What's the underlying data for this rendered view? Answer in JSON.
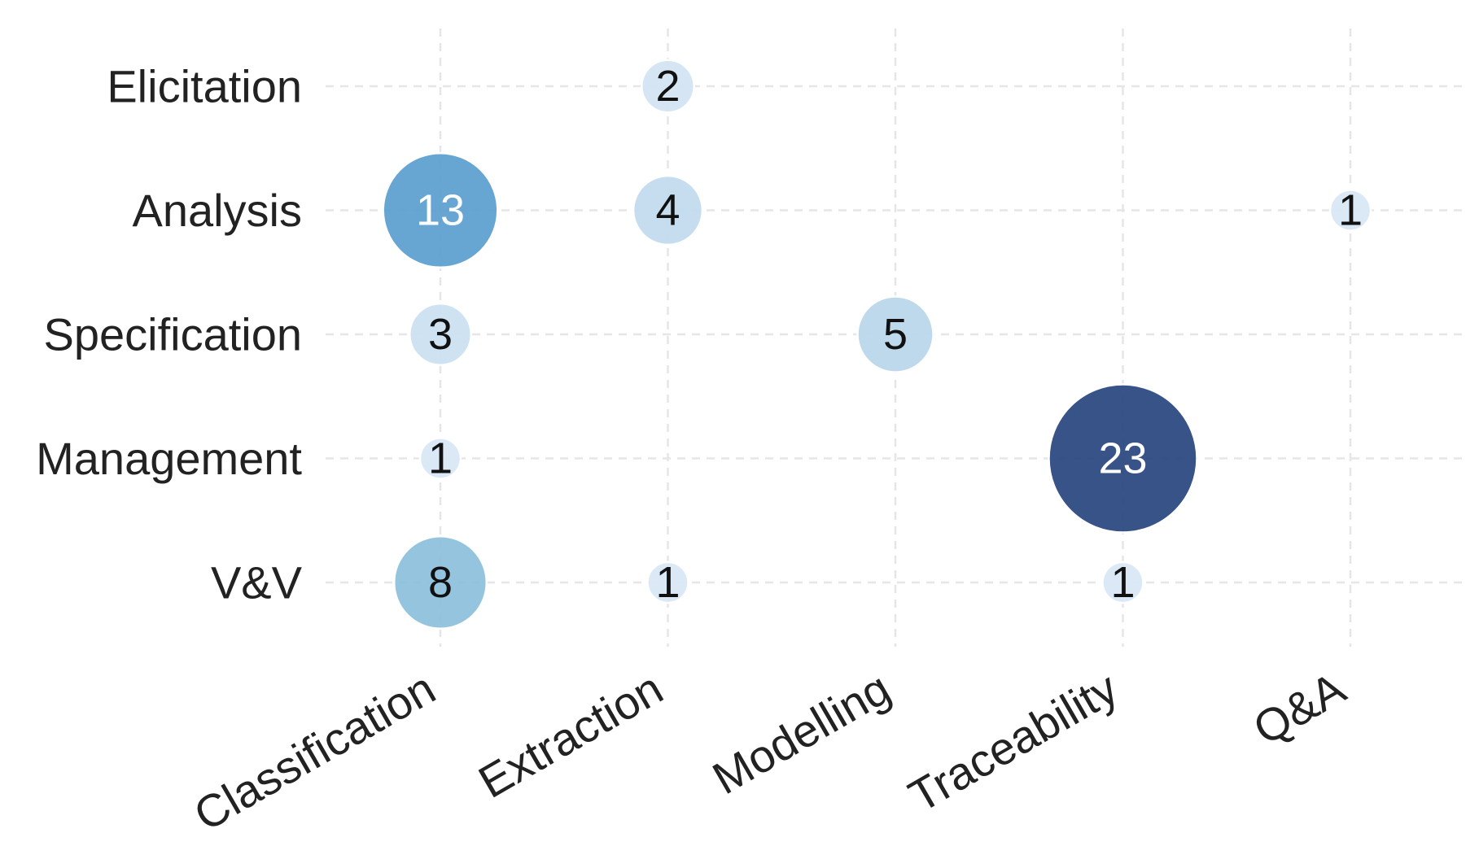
{
  "chart_data": {
    "type": "scatter",
    "subtype": "bubble-matrix",
    "x_categories": [
      "Classification",
      "Extraction",
      "Modelling",
      "Traceability",
      "Q&A"
    ],
    "y_categories": [
      "Elicitation",
      "Analysis",
      "Specification",
      "Management",
      "V&V"
    ],
    "points": [
      {
        "x": "Extraction",
        "y": "Elicitation",
        "value": 2
      },
      {
        "x": "Classification",
        "y": "Analysis",
        "value": 13
      },
      {
        "x": "Extraction",
        "y": "Analysis",
        "value": 4
      },
      {
        "x": "Q&A",
        "y": "Analysis",
        "value": 1
      },
      {
        "x": "Classification",
        "y": "Specification",
        "value": 3
      },
      {
        "x": "Modelling",
        "y": "Specification",
        "value": 5
      },
      {
        "x": "Classification",
        "y": "Management",
        "value": 1
      },
      {
        "x": "Traceability",
        "y": "Management",
        "value": 23
      },
      {
        "x": "Classification",
        "y": "V&V",
        "value": 8
      },
      {
        "x": "Extraction",
        "y": "V&V",
        "value": 1
      },
      {
        "x": "Traceability",
        "y": "V&V",
        "value": 1
      }
    ],
    "title": "",
    "xlabel": "",
    "ylabel": "",
    "grid": true,
    "colormap": "Blues",
    "color_range": [
      1,
      23
    ],
    "colors": {
      "low": "#d7e6f5",
      "mid": "#5b9ecd",
      "high": "#34508a",
      "grid": "#e6e6e6",
      "label": "#222222"
    }
  }
}
